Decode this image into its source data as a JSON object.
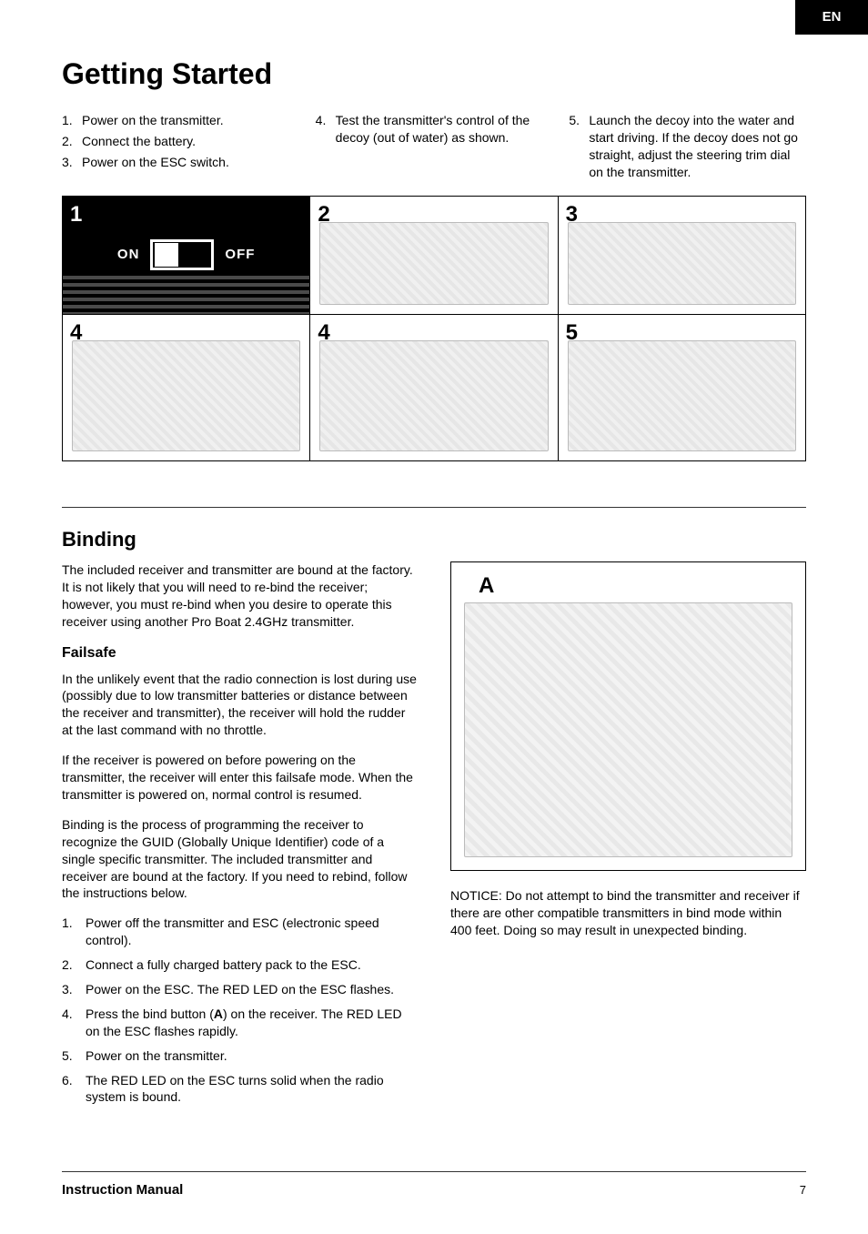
{
  "lang_badge": "EN",
  "title": "Getting Started",
  "steps": {
    "col1": [
      {
        "n": "1.",
        "t": "Power on the transmitter."
      },
      {
        "n": "2.",
        "t": "Connect the battery."
      },
      {
        "n": "3.",
        "t": "Power on the ESC switch."
      }
    ],
    "col2": [
      {
        "n": "4.",
        "t": "Test the transmitter's control of the decoy (out of water) as shown."
      }
    ],
    "col3": [
      {
        "n": "5.",
        "t": "Launch the decoy into the water and start driving. If the decoy does not go straight, adjust the steering trim dial on the transmitter."
      }
    ]
  },
  "panels": {
    "row1": [
      {
        "num": "1",
        "on": "ON",
        "off": "OFF"
      },
      {
        "num": "2"
      },
      {
        "num": "3"
      }
    ],
    "row2": [
      {
        "num": "4"
      },
      {
        "num": "4"
      },
      {
        "num": "5"
      }
    ]
  },
  "binding": {
    "heading": "Binding",
    "intro": "The included receiver and transmitter are bound at the factory. It is not likely that you will need to re-bind the receiver; however, you must re-bind when you desire to operate this receiver using another Pro Boat 2.4GHz transmitter.",
    "failsafe_heading": "Failsafe",
    "failsafe_p1": "In the unlikely event that the radio connection is lost during use (possibly due to low transmitter batteries or distance between the receiver and transmitter), the receiver will hold the rudder at the last command with no throttle.",
    "failsafe_p2": "If the receiver is powered on before powering on the transmitter, the receiver will enter this failsafe mode. When the transmitter is powered on, normal control is resumed.",
    "failsafe_p3": "Binding is the process of programming the receiver to recognize the GUID (Globally Unique Identifier) code of a single specific transmitter. The included transmitter and receiver are bound at the factory. If you need to rebind, follow the instructions below.",
    "list": [
      {
        "n": "1.",
        "t": "Power off the transmitter and ESC (electronic speed control)."
      },
      {
        "n": "2.",
        "t": "Connect a fully charged battery pack to the ESC."
      },
      {
        "n": "3.",
        "t": "Power on the ESC. The RED LED on the ESC flashes."
      },
      {
        "n": "4.",
        "t_pre": "Press the bind button (",
        "t_bold": "A",
        "t_post": ") on the receiver. The RED LED on the ESC flashes rapidly."
      },
      {
        "n": "5.",
        "t": "Power on the transmitter."
      },
      {
        "n": "6.",
        "t": "The RED LED on the ESC turns solid when the radio system is bound."
      }
    ],
    "diagram_label": "A",
    "notice": "NOTICE: Do not attempt to bind the transmitter and receiver if there are other compatible transmitters in bind mode within 400 feet. Doing so may result in unexpected binding."
  },
  "footer": {
    "title": "Instruction Manual",
    "page": "7"
  }
}
